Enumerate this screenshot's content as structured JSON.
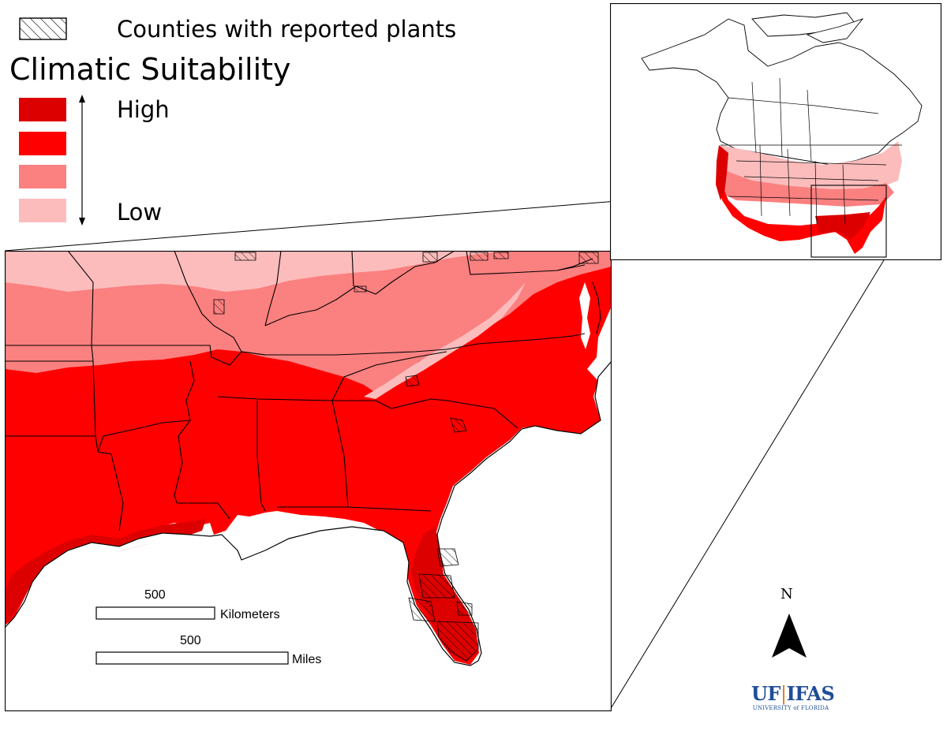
{
  "legend": {
    "hatch_label": "Counties with reported plants",
    "title": "Climatic Suitability",
    "high_label": "High",
    "low_label": "Low",
    "classes": [
      {
        "level": "highest",
        "color": "#dd0000"
      },
      {
        "level": "high",
        "color": "#ff0000"
      },
      {
        "level": "medium",
        "color": "#fb8080"
      },
      {
        "level": "low",
        "color": "#fcbcbc"
      }
    ]
  },
  "scale_bar": {
    "km_value": "500",
    "km_unit": "Kilometers",
    "mi_value": "500",
    "mi_unit": "Miles"
  },
  "north_arrow": {
    "label": "N"
  },
  "logo": {
    "main_left": "UF",
    "main_sep": "|",
    "main_right": "IFAS",
    "sub": "UNIVERSITY of FLORIDA"
  },
  "colors": {
    "outline": "#000000",
    "water": "#ffffff"
  }
}
